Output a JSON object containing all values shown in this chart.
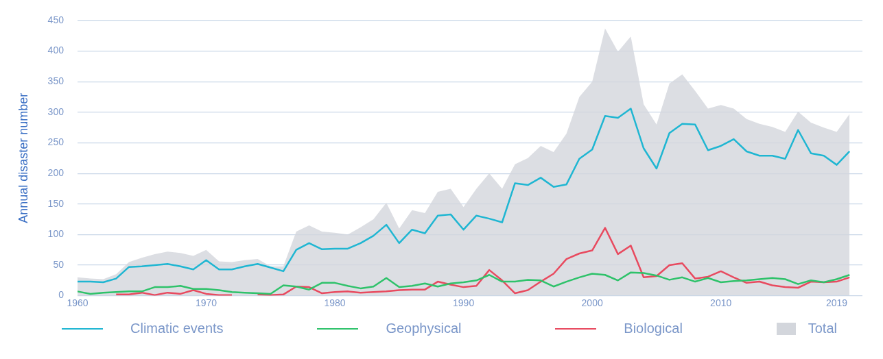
{
  "chart_data": {
    "type": "line",
    "ylabel": "Annual disaster number",
    "x": [
      1960,
      1961,
      1962,
      1963,
      1964,
      1965,
      1966,
      1967,
      1968,
      1969,
      1970,
      1971,
      1972,
      1973,
      1974,
      1975,
      1976,
      1977,
      1978,
      1979,
      1980,
      1981,
      1982,
      1983,
      1984,
      1985,
      1986,
      1987,
      1988,
      1989,
      1990,
      1991,
      1992,
      1993,
      1994,
      1995,
      1996,
      1997,
      1998,
      1999,
      2000,
      2001,
      2002,
      2003,
      2004,
      2005,
      2006,
      2007,
      2008,
      2009,
      2010,
      2011,
      2012,
      2013,
      2014,
      2015,
      2016,
      2017,
      2018,
      2019,
      2020
    ],
    "series": [
      {
        "name": "Total",
        "type": "area",
        "color": "#d3d6dc",
        "values": [
          30,
          28,
          27,
          35,
          55,
          62,
          68,
          72,
          70,
          65,
          75,
          56,
          55,
          58,
          60,
          48,
          48,
          105,
          115,
          105,
          103,
          100,
          112,
          125,
          152,
          110,
          140,
          135,
          170,
          175,
          145,
          175,
          200,
          175,
          215,
          225,
          245,
          235,
          265,
          325,
          350,
          437,
          399,
          424,
          313,
          280,
          347,
          362,
          335,
          306,
          312,
          306,
          289,
          281,
          276,
          268,
          301,
          283,
          275,
          268,
          297
        ]
      },
      {
        "name": "Climatic events",
        "color": "#1fb6d2",
        "values": [
          23,
          23,
          22,
          28,
          47,
          48,
          50,
          52,
          48,
          43,
          58,
          43,
          43,
          48,
          52,
          46,
          40,
          75,
          86,
          76,
          77,
          77,
          86,
          98,
          116,
          86,
          108,
          102,
          131,
          133,
          108,
          131,
          126,
          120,
          184,
          181,
          193,
          178,
          182,
          224,
          239,
          294,
          291,
          306,
          241,
          208,
          266,
          281,
          280,
          238,
          245,
          256,
          236,
          229,
          229,
          224,
          271,
          233,
          229,
          214,
          236
        ]
      },
      {
        "name": "Geophysical",
        "color": "#2ec26a",
        "values": [
          7,
          3,
          5,
          6,
          7,
          7,
          14,
          14,
          16,
          11,
          11,
          9,
          6,
          5,
          4,
          3,
          17,
          15,
          10,
          21,
          21,
          16,
          12,
          15,
          29,
          14,
          16,
          20,
          15,
          20,
          22,
          25,
          34,
          23,
          23,
          26,
          25,
          15,
          23,
          30,
          36,
          34,
          25,
          38,
          37,
          33,
          26,
          30,
          23,
          29,
          22,
          24,
          25,
          27,
          29,
          27,
          19,
          25,
          22,
          27,
          34
        ]
      },
      {
        "name": "Biological",
        "color": "#e84a5f",
        "values": [
          null,
          null,
          null,
          2,
          2,
          5,
          1,
          5,
          3,
          9,
          3,
          1,
          1,
          null,
          2,
          1,
          2,
          15,
          14,
          4,
          6,
          7,
          5,
          6,
          7,
          9,
          10,
          10,
          23,
          18,
          14,
          16,
          42,
          25,
          4,
          9,
          23,
          36,
          60,
          69,
          74,
          111,
          68,
          82,
          30,
          32,
          50,
          53,
          28,
          31,
          40,
          30,
          21,
          23,
          17,
          14,
          13,
          23,
          22,
          23,
          30
        ]
      }
    ],
    "xlim": [
      1960,
      2021
    ],
    "xticks": [
      1960,
      1970,
      1980,
      1990,
      2000,
      2010,
      2019
    ],
    "ylim": [
      0,
      450
    ],
    "yticks": [
      0,
      50,
      100,
      150,
      200,
      250,
      300,
      350,
      400,
      450
    ],
    "grid": "y",
    "legend": "bottom"
  }
}
